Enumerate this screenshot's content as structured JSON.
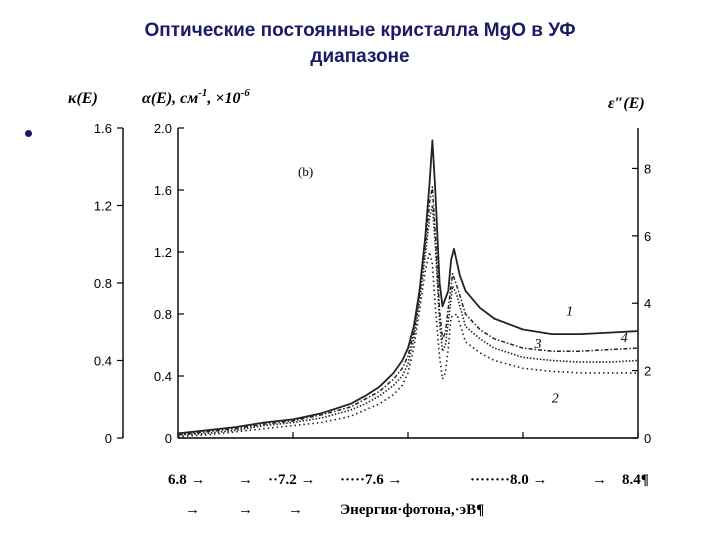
{
  "slide": {
    "title": "Оптические постоянные кристалла MgO в УФ\nдиапазоне"
  },
  "chart_data": {
    "type": "line",
    "panel_label": "(b)",
    "left_axis_label": "κ(E)",
    "left_axis_ticks": [
      "1.6",
      "1.2",
      "0.8",
      "0.4",
      "0"
    ],
    "left_ylim": [
      0,
      1.6
    ],
    "mid_axis_label_main": "α(E), см",
    "mid_axis_label_sup1": "-1",
    "mid_axis_label_mult": ", ×10",
    "mid_axis_label_sup2": "-6",
    "mid_axis_ticks": [
      "2.0",
      "1.6",
      "1.2",
      "0.8",
      "0.4",
      "0"
    ],
    "mid_ylim": [
      0,
      2.0
    ],
    "right_axis_label": "ε″(E)",
    "right_axis_ticks": [
      "8",
      "6",
      "4",
      "2",
      "0"
    ],
    "right_ylim": [
      0,
      9.2
    ],
    "x_tick_labels": [
      "6.8",
      "7.2",
      "7.6",
      "8.0",
      "8.4"
    ],
    "x_tick_text": {
      "t68": "6.8 →",
      "t72": "··7.2 →",
      "t76": "·····7.6 →",
      "t80": "········8.0 →",
      "t84": "8.4¶",
      "arrows": [
        "→",
        "→",
        "→",
        "→",
        "→"
      ],
      "xlabel": "Энергия·фотона,·эВ¶"
    },
    "xlim": [
      6.8,
      8.4
    ],
    "series": [
      {
        "label": "1",
        "style": "solid",
        "x": [
          6.8,
          6.9,
          7.0,
          7.1,
          7.2,
          7.3,
          7.4,
          7.45,
          7.5,
          7.55,
          7.58,
          7.6,
          7.62,
          7.64,
          7.66,
          7.675,
          7.685,
          7.695,
          7.71,
          7.72,
          7.74,
          7.75,
          7.76,
          7.78,
          7.8,
          7.85,
          7.9,
          8.0,
          8.1,
          8.2,
          8.3,
          8.4
        ],
        "y": [
          0.03,
          0.05,
          0.07,
          0.1,
          0.12,
          0.16,
          0.22,
          0.27,
          0.33,
          0.42,
          0.5,
          0.58,
          0.72,
          0.95,
          1.3,
          1.65,
          1.92,
          1.6,
          1.0,
          0.85,
          0.95,
          1.15,
          1.22,
          1.05,
          0.95,
          0.84,
          0.77,
          0.7,
          0.67,
          0.67,
          0.68,
          0.69
        ]
      },
      {
        "label": "2",
        "style": "dotted",
        "x": [
          6.8,
          6.9,
          7.0,
          7.1,
          7.2,
          7.3,
          7.4,
          7.45,
          7.5,
          7.55,
          7.58,
          7.6,
          7.62,
          7.64,
          7.66,
          7.675,
          7.685,
          7.695,
          7.71,
          7.72,
          7.73,
          7.74,
          7.75,
          7.77,
          7.8,
          7.85,
          7.9,
          8.0,
          8.1,
          8.2,
          8.3,
          8.4
        ],
        "y": [
          0.01,
          0.02,
          0.04,
          0.06,
          0.08,
          0.1,
          0.14,
          0.18,
          0.22,
          0.28,
          0.34,
          0.42,
          0.58,
          0.82,
          1.08,
          1.2,
          1.12,
          0.85,
          0.52,
          0.38,
          0.42,
          0.58,
          0.78,
          0.8,
          0.62,
          0.55,
          0.5,
          0.45,
          0.43,
          0.42,
          0.42,
          0.42
        ]
      },
      {
        "label": "3",
        "style": "densely-dotted",
        "x": [
          6.8,
          6.9,
          7.0,
          7.1,
          7.2,
          7.3,
          7.4,
          7.45,
          7.5,
          7.55,
          7.58,
          7.6,
          7.62,
          7.64,
          7.66,
          7.675,
          7.685,
          7.695,
          7.71,
          7.72,
          7.73,
          7.74,
          7.755,
          7.77,
          7.8,
          7.85,
          7.9,
          8.0,
          8.1,
          8.2,
          8.3,
          8.4
        ],
        "y": [
          0.02,
          0.03,
          0.05,
          0.08,
          0.1,
          0.13,
          0.18,
          0.22,
          0.27,
          0.34,
          0.4,
          0.48,
          0.64,
          0.88,
          1.18,
          1.42,
          1.5,
          1.25,
          0.74,
          0.56,
          0.6,
          0.75,
          0.98,
          0.92,
          0.72,
          0.64,
          0.58,
          0.52,
          0.5,
          0.49,
          0.49,
          0.5
        ]
      },
      {
        "label": "4",
        "style": "dash-dot",
        "x": [
          6.8,
          6.9,
          7.0,
          7.1,
          7.2,
          7.3,
          7.4,
          7.45,
          7.5,
          7.55,
          7.58,
          7.6,
          7.62,
          7.64,
          7.66,
          7.675,
          7.685,
          7.695,
          7.71,
          7.72,
          7.73,
          7.74,
          7.755,
          7.77,
          7.8,
          7.85,
          7.9,
          8.0,
          8.1,
          8.2,
          8.3,
          8.4
        ],
        "y": [
          0.02,
          0.04,
          0.06,
          0.09,
          0.11,
          0.15,
          0.2,
          0.25,
          0.3,
          0.38,
          0.45,
          0.53,
          0.68,
          0.92,
          1.24,
          1.52,
          1.62,
          1.32,
          0.82,
          0.64,
          0.68,
          0.84,
          1.06,
          0.98,
          0.8,
          0.7,
          0.64,
          0.58,
          0.56,
          0.56,
          0.57,
          0.58
        ]
      }
    ]
  }
}
